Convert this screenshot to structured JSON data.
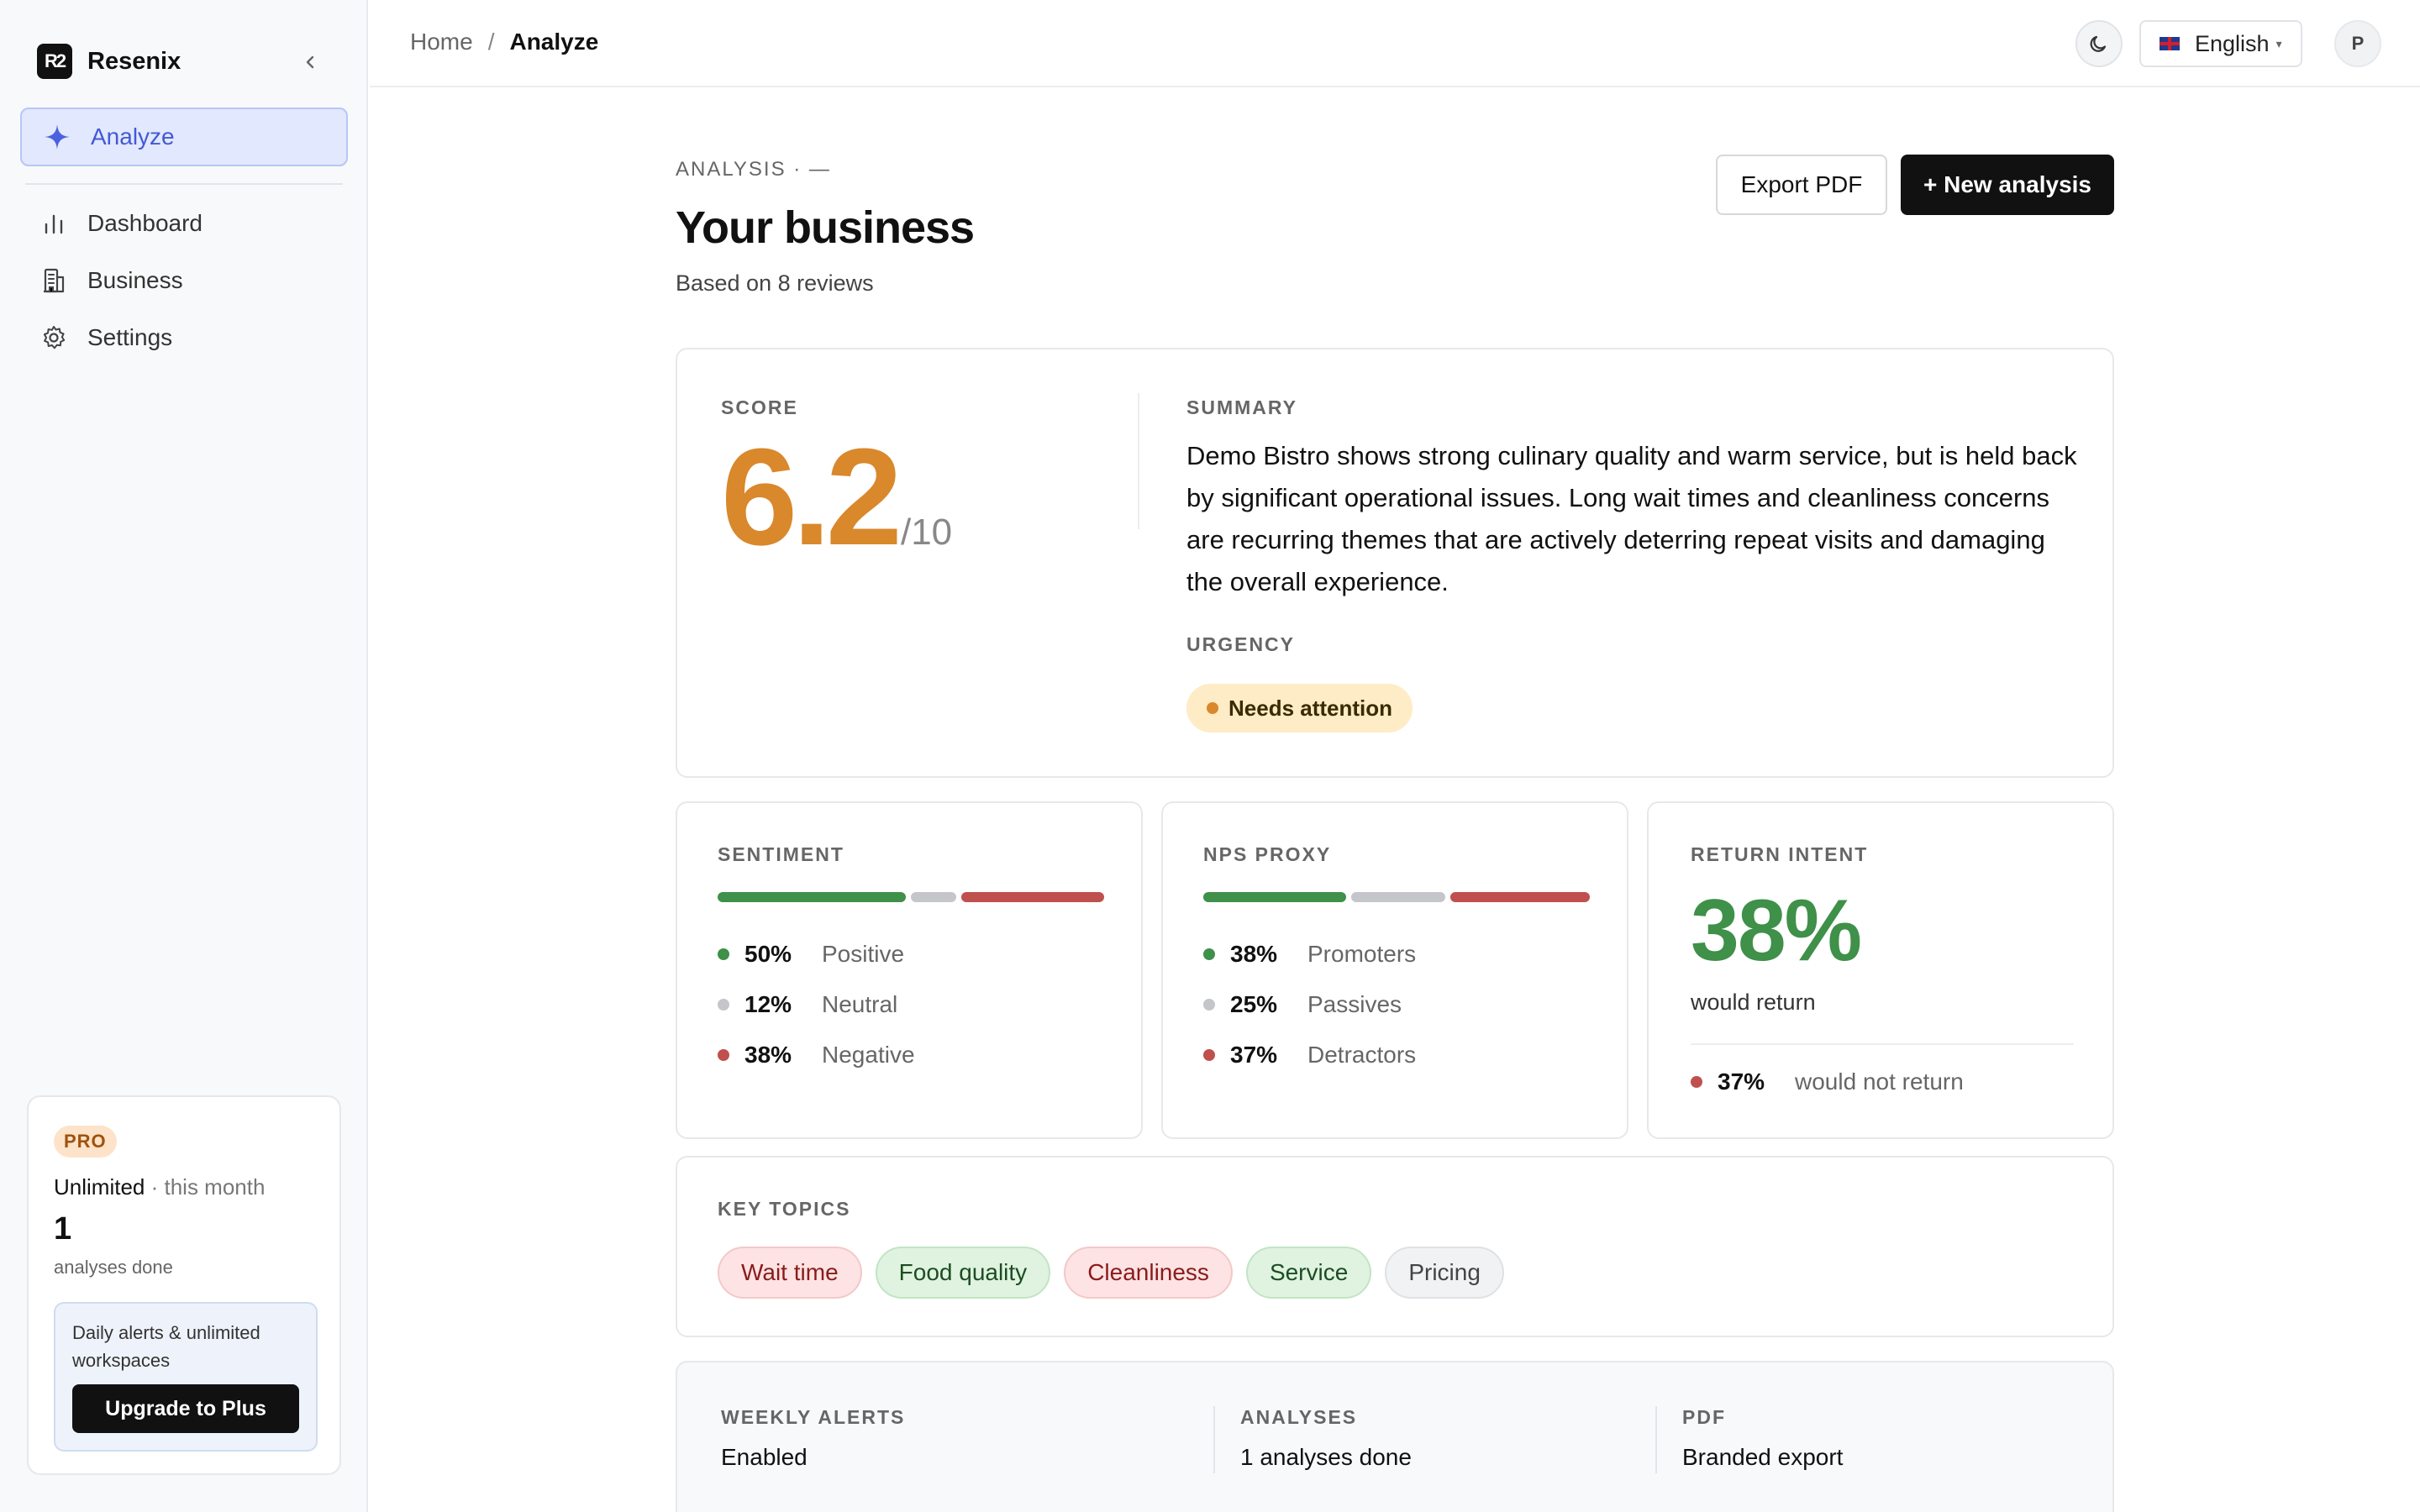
{
  "brand": {
    "name": "Resenix",
    "logo_text": "R2"
  },
  "sidebar": {
    "collapse_icon": "chevron-left-icon",
    "active_item": {
      "label": "Analyze",
      "icon": "sparkle-icon"
    },
    "items": [
      {
        "label": "Dashboard",
        "icon": "bar-chart-icon"
      },
      {
        "label": "Business",
        "icon": "building-icon"
      },
      {
        "label": "Settings",
        "icon": "gear-icon"
      }
    ],
    "plan": {
      "badge": "PRO",
      "plan_name": "Unlimited",
      "period": " · this month",
      "count": "1",
      "count_label": "analyses done",
      "upsell_text": "Daily alerts & unlimited workspaces",
      "upgrade_label": "Upgrade to Plus"
    }
  },
  "topbar": {
    "breadcrumb": {
      "home": "Home",
      "separator": "/",
      "current": "Analyze"
    },
    "language": "English",
    "avatar_initial": "P"
  },
  "header": {
    "eyebrow": "ANALYSIS · —",
    "title": "Your business",
    "subtitle": "Based on 8 reviews",
    "export_label": "Export PDF",
    "new_label": "+ New analysis"
  },
  "score": {
    "label": "SCORE",
    "value": "6.2",
    "denominator": "/10",
    "color": "#d9882b"
  },
  "summary": {
    "label": "SUMMARY",
    "text": "Demo Bistro shows strong culinary quality and warm service, but is held back by significant operational issues. Long wait times and cleanliness concerns are recurring themes that are actively deterring repeat visits and damaging the overall experience.",
    "urgency_label": "URGENCY",
    "urgency_value": "Needs attention"
  },
  "sentiment": {
    "label": "SENTIMENT",
    "rows": [
      {
        "pct": "50%",
        "name": "Positive",
        "value": 50,
        "color": "#3f9049"
      },
      {
        "pct": "12%",
        "name": "Neutral",
        "value": 12,
        "color": "#c4c6ca"
      },
      {
        "pct": "38%",
        "name": "Negative",
        "value": 38,
        "color": "#c0504d"
      }
    ]
  },
  "nps": {
    "label": "NPS PROXY",
    "rows": [
      {
        "pct": "38%",
        "name": "Promoters",
        "value": 38,
        "color": "#3f9049"
      },
      {
        "pct": "25%",
        "name": "Passives",
        "value": 25,
        "color": "#c4c6ca"
      },
      {
        "pct": "37%",
        "name": "Detractors",
        "value": 37,
        "color": "#c0504d"
      }
    ]
  },
  "return_intent": {
    "label": "RETURN INTENT",
    "value": "38%",
    "value_label": "would return",
    "not_pct": "37%",
    "not_label": "would not return",
    "positive_color": "#3f9049",
    "negative_color": "#c0504d"
  },
  "topics": {
    "label": "KEY TOPICS",
    "items": [
      {
        "label": "Wait time",
        "tone": "neg"
      },
      {
        "label": "Food quality",
        "tone": "pos"
      },
      {
        "label": "Cleanliness",
        "tone": "neg"
      },
      {
        "label": "Service",
        "tone": "pos"
      },
      {
        "label": "Pricing",
        "tone": "neu"
      }
    ]
  },
  "features": [
    {
      "label": "WEEKLY ALERTS",
      "value": "Enabled"
    },
    {
      "label": "ANALYSES",
      "value": "1 analyses done"
    },
    {
      "label": "PDF",
      "value": "Branded export"
    }
  ]
}
